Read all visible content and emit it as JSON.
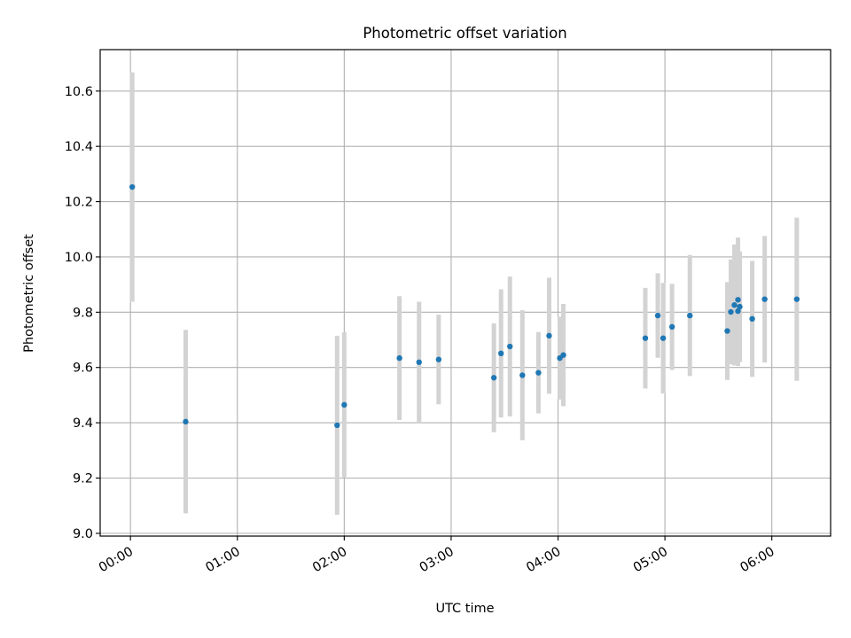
{
  "chart_data": {
    "type": "scatter",
    "title": "Photometric offset variation",
    "xlabel": "UTC time",
    "ylabel": "Photometric offset",
    "x_unit": "UTC time (HH:MM)",
    "xlim": [
      "23:43",
      "06:33"
    ],
    "ylim": [
      8.99,
      10.75
    ],
    "grid": true,
    "error_bars": true,
    "x_ticks": [
      "00:00",
      "01:00",
      "02:00",
      "03:00",
      "04:00",
      "05:00",
      "06:00"
    ],
    "y_ticks": [
      "9.0",
      "9.2",
      "9.4",
      "9.6",
      "9.8",
      "10.0",
      "10.2",
      "10.4",
      "10.6"
    ],
    "points": [
      {
        "x": "00:01",
        "y": 10.253,
        "yerr": 0.415
      },
      {
        "x": "00:31",
        "y": 9.404,
        "yerr": 0.332
      },
      {
        "x": "01:56",
        "y": 9.391,
        "yerr": 0.324
      },
      {
        "x": "02:00",
        "y": 9.465,
        "yerr": 0.262
      },
      {
        "x": "02:31",
        "y": 9.634,
        "yerr": 0.224
      },
      {
        "x": "02:42",
        "y": 9.619,
        "yerr": 0.219
      },
      {
        "x": "02:53",
        "y": 9.629,
        "yerr": 0.162
      },
      {
        "x": "03:24",
        "y": 9.563,
        "yerr": 0.197
      },
      {
        "x": "03:28",
        "y": 9.651,
        "yerr": 0.232
      },
      {
        "x": "03:33",
        "y": 9.676,
        "yerr": 0.253
      },
      {
        "x": "03:40",
        "y": 9.572,
        "yerr": 0.235
      },
      {
        "x": "03:49",
        "y": 9.581,
        "yerr": 0.147
      },
      {
        "x": "03:55",
        "y": 9.715,
        "yerr": 0.21
      },
      {
        "x": "04:01",
        "y": 9.634,
        "yerr": 0.15
      },
      {
        "x": "04:03",
        "y": 9.645,
        "yerr": 0.185
      },
      {
        "x": "04:49",
        "y": 9.706,
        "yerr": 0.182
      },
      {
        "x": "04:56",
        "y": 9.788,
        "yerr": 0.153
      },
      {
        "x": "04:59",
        "y": 9.706,
        "yerr": 0.2
      },
      {
        "x": "05:04",
        "y": 9.747,
        "yerr": 0.156
      },
      {
        "x": "05:14",
        "y": 9.788,
        "yerr": 0.219
      },
      {
        "x": "05:35",
        "y": 9.732,
        "yerr": 0.177
      },
      {
        "x": "05:37",
        "y": 9.801,
        "yerr": 0.19
      },
      {
        "x": "05:39",
        "y": 9.826,
        "yerr": 0.219
      },
      {
        "x": "05:41",
        "y": 9.845,
        "yerr": 0.225
      },
      {
        "x": "05:41",
        "y": 9.804,
        "yerr": 0.199
      },
      {
        "x": "05:42",
        "y": 9.82,
        "yerr": 0.2
      },
      {
        "x": "05:49",
        "y": 9.776,
        "yerr": 0.21
      },
      {
        "x": "05:56",
        "y": 9.847,
        "yerr": 0.229
      },
      {
        "x": "06:14",
        "y": 9.847,
        "yerr": 0.295
      }
    ]
  },
  "colors": {
    "point": "#1f77b4",
    "errorbar": "#d3d3d3",
    "grid": "#b0b0b0",
    "axes": "#000000",
    "background": "#ffffff"
  }
}
